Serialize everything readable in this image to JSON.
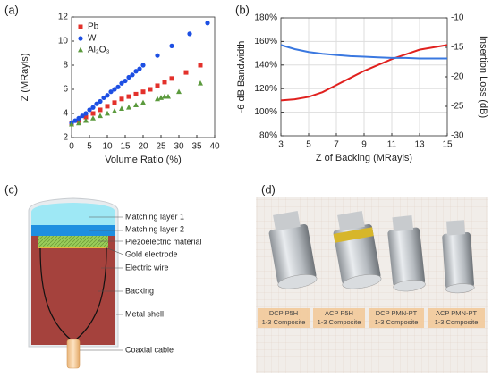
{
  "panels": [
    "(a)",
    "(b)",
    "(c)",
    "(d)"
  ],
  "chart_data": [
    {
      "type": "scatter",
      "xlabel": "Volume Ratio (%)",
      "ylabel": "Z (MRayls)",
      "xlim": [
        0,
        40
      ],
      "xticks": [
        0,
        5,
        10,
        15,
        20,
        25,
        30,
        35,
        40
      ],
      "ylim": [
        2,
        12
      ],
      "yticks": [
        2,
        4,
        6,
        8,
        10,
        12
      ],
      "grid": false,
      "legend": "upper left",
      "series": [
        {
          "name": "Pb",
          "color": "#e3312b",
          "marker": "square",
          "x": [
            0,
            2,
            4,
            6,
            8,
            10,
            12,
            14,
            16,
            18,
            20,
            22,
            24,
            26,
            28,
            32,
            36
          ],
          "values": [
            3.2,
            3.4,
            3.7,
            4.0,
            4.3,
            4.6,
            4.9,
            5.2,
            5.4,
            5.6,
            5.8,
            6.0,
            6.3,
            6.6,
            6.9,
            7.4,
            8.0
          ]
        },
        {
          "name": "W",
          "color": "#1d4fe3",
          "marker": "circle",
          "x": [
            0,
            1,
            2,
            3,
            4,
            5,
            6,
            7,
            8,
            9,
            10,
            11,
            12,
            13,
            14,
            15,
            16,
            17,
            18,
            19,
            20,
            24,
            28,
            33,
            38
          ],
          "values": [
            3.2,
            3.4,
            3.6,
            3.8,
            4.0,
            4.3,
            4.5,
            4.8,
            5.0,
            5.3,
            5.5,
            5.8,
            6.0,
            6.2,
            6.5,
            6.7,
            7.0,
            7.2,
            7.5,
            7.7,
            8.0,
            8.8,
            9.6,
            10.6,
            11.5
          ]
        },
        {
          "name": "Al₂O₃",
          "color": "#5b9a3d",
          "marker": "triangle",
          "x": [
            0,
            2,
            4,
            6,
            8,
            10,
            12,
            14,
            16,
            18,
            20,
            24,
            25,
            26,
            27,
            30,
            36
          ],
          "values": [
            3.1,
            3.2,
            3.4,
            3.6,
            3.8,
            4.0,
            4.2,
            4.4,
            4.5,
            4.7,
            4.9,
            5.2,
            5.3,
            5.4,
            5.4,
            5.8,
            6.5
          ]
        }
      ]
    },
    {
      "type": "line",
      "xlabel": "Z of Backing (MRayls)",
      "ylabel": "-6 dB Bandwidth",
      "y2label": "Insertion Loss (dB)",
      "x": [
        3,
        4,
        5,
        6,
        7,
        8,
        9,
        10,
        11,
        12,
        13,
        14,
        15
      ],
      "xlim": [
        3,
        15
      ],
      "xticks": [
        3,
        5,
        7,
        9,
        11,
        13,
        15
      ],
      "ylim": [
        80,
        180
      ],
      "yticks": [
        {
          "value": 80,
          "label": "80%"
        },
        {
          "value": 100,
          "label": "100%"
        },
        {
          "value": 120,
          "label": "120%"
        },
        {
          "value": 140,
          "label": "140%"
        },
        {
          "value": 160,
          "label": "160%"
        },
        {
          "value": 180,
          "label": "180%"
        }
      ],
      "y2lim": [
        -30,
        -10
      ],
      "y2ticks": [
        -30,
        -25,
        -20,
        -15,
        -10
      ],
      "grid": true,
      "series": [
        {
          "color": "#e0201e",
          "axis": "y",
          "values": [
            110,
            111,
            113,
            117,
            123,
            129,
            135,
            140,
            145,
            149,
            153,
            155,
            157
          ]
        },
        {
          "color": "#3a78e0",
          "axis": "y2",
          "values": [
            -14.6,
            -15.3,
            -15.8,
            -16.1,
            -16.3,
            -16.5,
            -16.6,
            -16.7,
            -16.8,
            -16.8,
            -16.9,
            -16.9,
            -16.9
          ]
        }
      ]
    }
  ],
  "diagram": {
    "labels": [
      "Matching layer 1",
      "Matching layer 2",
      "Piezoelectric material",
      "Gold electrode",
      "Electric wire",
      "Backing",
      "Metal shell",
      "Coaxial cable"
    ]
  },
  "photo": {
    "labels": [
      [
        "DCP P5H",
        "1-3 Composite"
      ],
      [
        "ACP P5H",
        "1-3 Composite"
      ],
      [
        "DCP PMN-PT",
        "1-3 Composite"
      ],
      [
        "ACP PMN-PT",
        "1-3 Composite"
      ]
    ]
  }
}
